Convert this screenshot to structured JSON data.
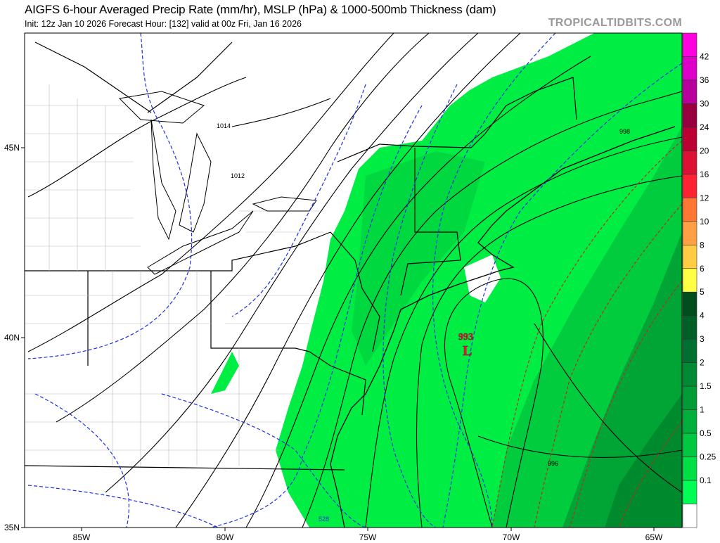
{
  "header": {
    "title": "AIGFS 6-hour Averaged Precip Rate (mm/hr), MSLP (hPa) & 1000-500mb Thickness (dam)",
    "subtitle": "Init: 12z Jan 10 2026   Forecast Hour: [132]   valid at 00z Fri, Jan 16 2026",
    "brand": "TROPICALTIDBITS.COM"
  },
  "map": {
    "lon_labels": [
      "85W",
      "80W",
      "75W",
      "70W",
      "65W"
    ],
    "lat_labels": [
      "45N",
      "40N",
      "35N"
    ],
    "isobar_labels": [
      "1014",
      "1012",
      "998",
      "996"
    ],
    "thickness_labels": [
      "528"
    ],
    "low": {
      "pressure": "993",
      "symbol": "L",
      "color": "#e8173c"
    },
    "colors": {
      "precip_light": "#00ee44",
      "precip_mid": "#00c43c",
      "precip_dark": "#009a33",
      "isobar": "#000000",
      "thickness_cold": "#1a2fe6",
      "thickness_warm": "#cc2222"
    }
  },
  "colorbar": {
    "labels": [
      "42",
      "36",
      "30",
      "24",
      "20",
      "16",
      "12",
      "10",
      "8",
      "6",
      "5",
      "4",
      "3",
      "2",
      "1.5",
      "1",
      "0.5",
      "0.25",
      "0.1"
    ],
    "colors": [
      "#ff00e0",
      "#dd00c8",
      "#b8009c",
      "#990040",
      "#bb0034",
      "#dd1133",
      "#ff2233",
      "#ff7733",
      "#ffa044",
      "#ffcc44",
      "#ffff44",
      "#004d1e",
      "#005f26",
      "#007030",
      "#008a33",
      "#009c36",
      "#00b03a",
      "#00c83f",
      "#00e044",
      "#00ff55",
      "#ffffff"
    ]
  }
}
